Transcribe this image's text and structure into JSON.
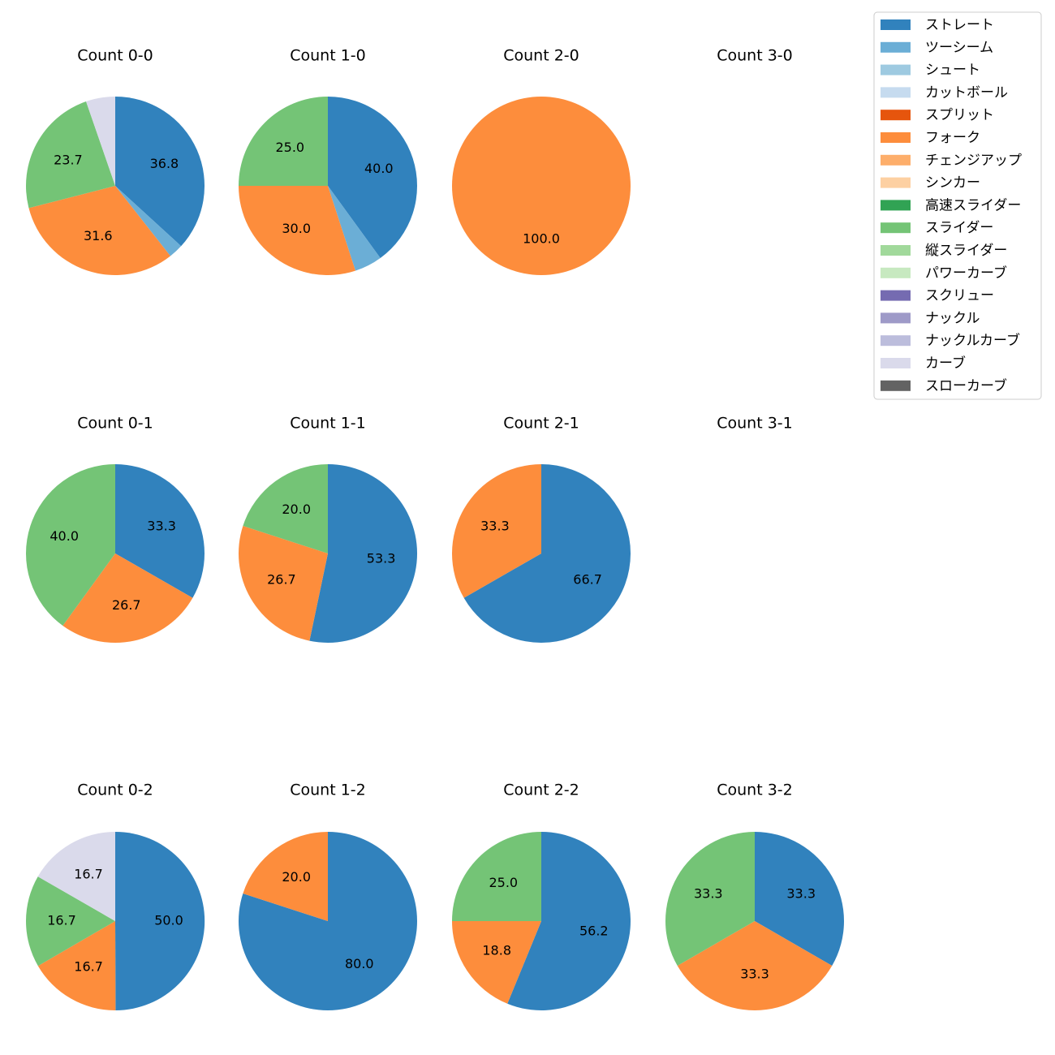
{
  "chart_data": {
    "type": "pie",
    "legend": {
      "placement": "top-right",
      "entries": [
        {
          "label": "ストレート",
          "color": "#3182bd"
        },
        {
          "label": "ツーシーム",
          "color": "#6baed6"
        },
        {
          "label": "シュート",
          "color": "#9ecae1"
        },
        {
          "label": "カットボール",
          "color": "#c6dbef"
        },
        {
          "label": "スプリット",
          "color": "#e6550d"
        },
        {
          "label": "フォーク",
          "color": "#fd8d3c"
        },
        {
          "label": "チェンジアップ",
          "color": "#fdae6b"
        },
        {
          "label": "シンカー",
          "color": "#fdd0a2"
        },
        {
          "label": "高速スライダー",
          "color": "#31a354"
        },
        {
          "label": "スライダー",
          "color": "#74c476"
        },
        {
          "label": "縦スライダー",
          "color": "#a1d99b"
        },
        {
          "label": "パワーカーブ",
          "color": "#c7e9c0"
        },
        {
          "label": "スクリュー",
          "color": "#756bb1"
        },
        {
          "label": "ナックル",
          "color": "#9e9ac8"
        },
        {
          "label": "ナックルカーブ",
          "color": "#bcbddc"
        },
        {
          "label": "カーブ",
          "color": "#dadaeb"
        },
        {
          "label": "スローカーブ",
          "color": "#636363"
        }
      ]
    },
    "charts": [
      {
        "title": "Count 0-0",
        "slices": [
          {
            "pitch": "ストレート",
            "value": 36.8,
            "label": "36.8"
          },
          {
            "pitch": "ツーシーム",
            "value": 2.6,
            "label": ""
          },
          {
            "pitch": "フォーク",
            "value": 31.6,
            "label": "31.6"
          },
          {
            "pitch": "スライダー",
            "value": 23.7,
            "label": "23.7"
          },
          {
            "pitch": "カーブ",
            "value": 5.3,
            "label": ""
          }
        ]
      },
      {
        "title": "Count 1-0",
        "slices": [
          {
            "pitch": "ストレート",
            "value": 40.0,
            "label": "40.0"
          },
          {
            "pitch": "ツーシーム",
            "value": 5.0,
            "label": ""
          },
          {
            "pitch": "フォーク",
            "value": 30.0,
            "label": "30.0"
          },
          {
            "pitch": "スライダー",
            "value": 25.0,
            "label": "25.0"
          }
        ]
      },
      {
        "title": "Count 2-0",
        "slices": [
          {
            "pitch": "フォーク",
            "value": 100.0,
            "label": "100.0"
          }
        ]
      },
      {
        "title": "Count 3-0",
        "slices": []
      },
      {
        "title": "Count 0-1",
        "slices": [
          {
            "pitch": "ストレート",
            "value": 33.3,
            "label": "33.3"
          },
          {
            "pitch": "フォーク",
            "value": 26.7,
            "label": "26.7"
          },
          {
            "pitch": "スライダー",
            "value": 40.0,
            "label": "40.0"
          }
        ]
      },
      {
        "title": "Count 1-1",
        "slices": [
          {
            "pitch": "ストレート",
            "value": 53.3,
            "label": "53.3"
          },
          {
            "pitch": "フォーク",
            "value": 26.7,
            "label": "26.7"
          },
          {
            "pitch": "スライダー",
            "value": 20.0,
            "label": "20.0"
          }
        ]
      },
      {
        "title": "Count 2-1",
        "slices": [
          {
            "pitch": "ストレート",
            "value": 66.7,
            "label": "66.7"
          },
          {
            "pitch": "フォーク",
            "value": 33.3,
            "label": "33.3"
          }
        ]
      },
      {
        "title": "Count 3-1",
        "slices": []
      },
      {
        "title": "Count 0-2",
        "slices": [
          {
            "pitch": "ストレート",
            "value": 50.0,
            "label": "50.0"
          },
          {
            "pitch": "フォーク",
            "value": 16.7,
            "label": "16.7"
          },
          {
            "pitch": "スライダー",
            "value": 16.7,
            "label": "16.7"
          },
          {
            "pitch": "カーブ",
            "value": 16.7,
            "label": "16.7"
          }
        ]
      },
      {
        "title": "Count 1-2",
        "slices": [
          {
            "pitch": "ストレート",
            "value": 80.0,
            "label": "80.0"
          },
          {
            "pitch": "フォーク",
            "value": 20.0,
            "label": "20.0"
          }
        ]
      },
      {
        "title": "Count 2-2",
        "slices": [
          {
            "pitch": "ストレート",
            "value": 56.2,
            "label": "56.2"
          },
          {
            "pitch": "フォーク",
            "value": 18.8,
            "label": "18.8"
          },
          {
            "pitch": "スライダー",
            "value": 25.0,
            "label": "25.0"
          }
        ]
      },
      {
        "title": "Count 3-2",
        "slices": [
          {
            "pitch": "ストレート",
            "value": 33.3,
            "label": "33.3"
          },
          {
            "pitch": "フォーク",
            "value": 33.3,
            "label": "33.3"
          },
          {
            "pitch": "スライダー",
            "value": 33.3,
            "label": "33.3"
          }
        ]
      }
    ]
  }
}
